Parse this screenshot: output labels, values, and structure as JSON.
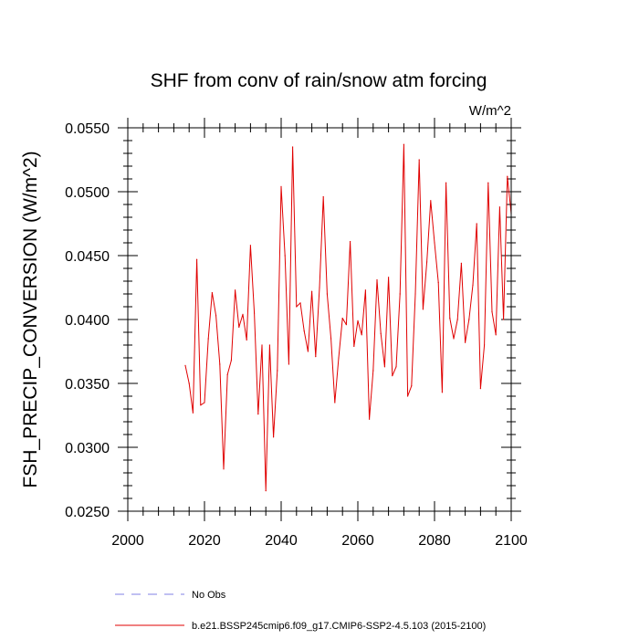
{
  "chart_data": {
    "type": "line",
    "title": "SHF from conv of rain/snow atm forcing",
    "units": "W/m^2",
    "xlabel": "",
    "ylabel": "FSH_PRECIP_CONVERSION  (W/m^2)",
    "xlim": [
      2000,
      2100
    ],
    "ylim": [
      0.025,
      0.055
    ],
    "x_ticks": [
      2000,
      2020,
      2040,
      2060,
      2080,
      2100
    ],
    "x_tick_labels": [
      "2000",
      "2020",
      "2040",
      "2060",
      "2080",
      "2100"
    ],
    "y_ticks": [
      0.025,
      0.03,
      0.035,
      0.04,
      0.045,
      0.05,
      0.055
    ],
    "y_tick_labels": [
      "0.0250",
      "0.0300",
      "0.0350",
      "0.0400",
      "0.0450",
      "0.0500",
      "0.0550"
    ],
    "legend": [
      {
        "name": "No Obs",
        "color": "#8080e6",
        "style": "dashed"
      },
      {
        "name": "b.e21.BSSP245cmip6.f09_g17.CMIP6-SSP2-4.5.103 (2015-2100)",
        "color": "#e00000",
        "style": "solid"
      }
    ],
    "series": [
      {
        "name": "b.e21.BSSP245cmip6.f09_g17.CMIP6-SSP2-4.5.103 (2015-2100)",
        "color": "#e00000",
        "x_start": 2015,
        "values": [
          0.0364,
          0.035,
          0.0327,
          0.0447,
          0.0333,
          0.0335,
          0.0385,
          0.0421,
          0.0403,
          0.0365,
          0.0283,
          0.0357,
          0.0368,
          0.0423,
          0.0394,
          0.0404,
          0.0384,
          0.0458,
          0.0405,
          0.0326,
          0.038,
          0.0266,
          0.038,
          0.0308,
          0.036,
          0.0504,
          0.045,
          0.0365,
          0.0535,
          0.041,
          0.0413,
          0.0391,
          0.0375,
          0.0422,
          0.0371,
          0.0425,
          0.0496,
          0.042,
          0.0385,
          0.0335,
          0.037,
          0.0401,
          0.0396,
          0.0461,
          0.0379,
          0.0399,
          0.0388,
          0.0423,
          0.0322,
          0.036,
          0.0431,
          0.0389,
          0.0363,
          0.0433,
          0.0356,
          0.0363,
          0.042,
          0.0537,
          0.034,
          0.0348,
          0.042,
          0.0525,
          0.0408,
          0.0445,
          0.0493,
          0.046,
          0.0429,
          0.0343,
          0.0507,
          0.0401,
          0.0385,
          0.04,
          0.0444,
          0.0382,
          0.04,
          0.0427,
          0.0475,
          0.0346,
          0.038,
          0.0507,
          0.0406,
          0.0388,
          0.0488,
          0.04,
          0.0512,
          0.0483
        ]
      }
    ]
  }
}
